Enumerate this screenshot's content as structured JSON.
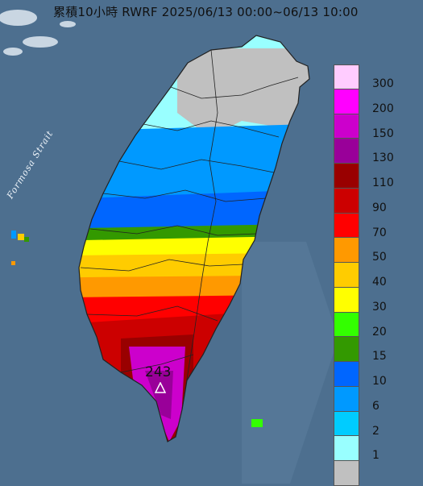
{
  "map": {
    "title": "累積10小時 RWRF 2025/06/13 00:00~06/13 10:00",
    "strait_label": "Formosa Strait",
    "peak_value": "243",
    "peak_marker_icon": "triangle-marker-icon",
    "sea_color": "#4d6f8f",
    "land_outline_color": "#222222"
  },
  "legend": {
    "unit": "",
    "items": [
      {
        "label": "300",
        "color": "#ffccff"
      },
      {
        "label": "200",
        "color": "#ff00ff"
      },
      {
        "label": "150",
        "color": "#cc00cc"
      },
      {
        "label": "130",
        "color": "#990099"
      },
      {
        "label": "110",
        "color": "#990000"
      },
      {
        "label": "90",
        "color": "#cc0000"
      },
      {
        "label": "70",
        "color": "#ff0000"
      },
      {
        "label": "50",
        "color": "#ff9900"
      },
      {
        "label": "40",
        "color": "#ffcc00"
      },
      {
        "label": "30",
        "color": "#ffff00"
      },
      {
        "label": "20",
        "color": "#33ff00"
      },
      {
        "label": "15",
        "color": "#339900"
      },
      {
        "label": "10",
        "color": "#0066ff"
      },
      {
        "label": "6",
        "color": "#0099ff"
      },
      {
        "label": "2",
        "color": "#00ccff"
      },
      {
        "label": "1",
        "color": "#99ffff"
      },
      {
        "label": "",
        "color": "#c0c0c0"
      }
    ]
  }
}
